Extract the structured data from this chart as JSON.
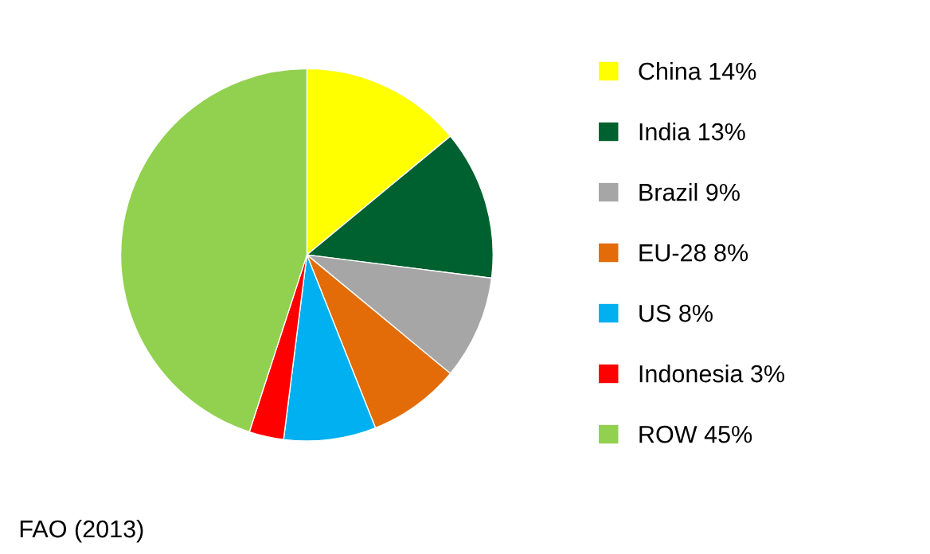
{
  "chart_data": {
    "type": "pie",
    "categories": [
      "China 14%",
      "India 13%",
      "Brazil 9%",
      "EU-28 8%",
      "US 8%",
      "Indonesia 3%",
      "ROW 45%"
    ],
    "values": [
      14,
      13,
      9,
      8,
      8,
      3,
      45
    ],
    "colors": [
      "#ffff00",
      "#006130",
      "#a6a6a6",
      "#e36c09",
      "#00b0f0",
      "#ff0000",
      "#92d050"
    ],
    "legend": "right",
    "annotations": [
      "FAO (2013)"
    ]
  }
}
